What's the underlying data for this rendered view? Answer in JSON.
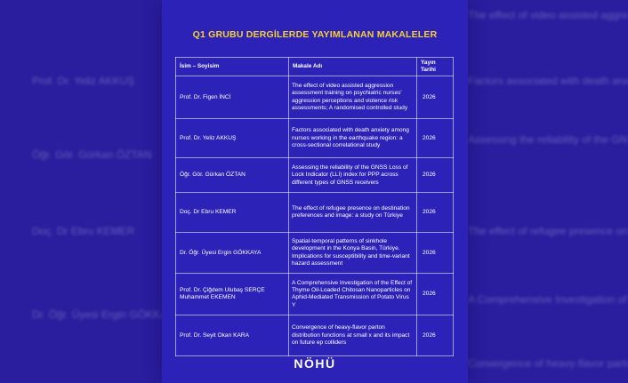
{
  "title": "Q1 GRUBU DERGİLERDE YAYIMLANAN MAKALELER",
  "table": {
    "headers": {
      "name": "İsim – Soyisim",
      "title": "Makale Adı",
      "year": "Yayın Tarihi"
    },
    "rows": [
      {
        "name": "Prof. Dr. Figen İNCİ",
        "title": "The effect of video assisted aggression assessment training on psychiatric nurses' aggression perceptions and violence risk assessments; A randomised controlled study",
        "year": "2026"
      },
      {
        "name": "Prof. Dr. Yeliz AKKUŞ",
        "title": "Factors associated with death anxiety among nurses working in the earthquake region: a cross-sectional correlational study",
        "year": "2026"
      },
      {
        "name": "Öğr. Gör. Gürkan ÖZTAN",
        "title": "Assessing the reliability of the GNSS Loss of Lock Indicator (LLI) index for PPP across different types of GNSS receivers",
        "year": "2026"
      },
      {
        "name": "Doç. Dr Ebru KEMER",
        "title": "The effect of refugee presence on destination preferences and image: a study on Türkiye",
        "year": "2026"
      },
      {
        "name": "Dr. Öğr. Üyesi Ergin GÖKKAYA",
        "title": "Spatial-temporal patterns of sinkhole development in the Konya Basin, Türkiye. Implications for susceptibility and time-variant hazard assessment",
        "year": "2026"
      },
      {
        "name": "Prof. Dr. Çiğdem Ulubaş SERÇE Muhammet EKEMEN",
        "title": "A Comprehensive Investigation of the Effect of Thyme Oil-Loaded Chitosan Nanoparticles on Aphid-Mediated Transmission of Potato Virus Y",
        "year": "2026"
      },
      {
        "name": "Prof. Dr. Seyit Okan KARA",
        "title": "Convergence of heavy-flavor parton distribution functions at small x and its impact on future ep colliders",
        "year": "2026"
      }
    ]
  },
  "logo": "NÖHÜ",
  "colors": {
    "background": "#2a1d9e",
    "panel": "#2d22b7",
    "title": "#f6d22e",
    "text": "#ffffff"
  }
}
